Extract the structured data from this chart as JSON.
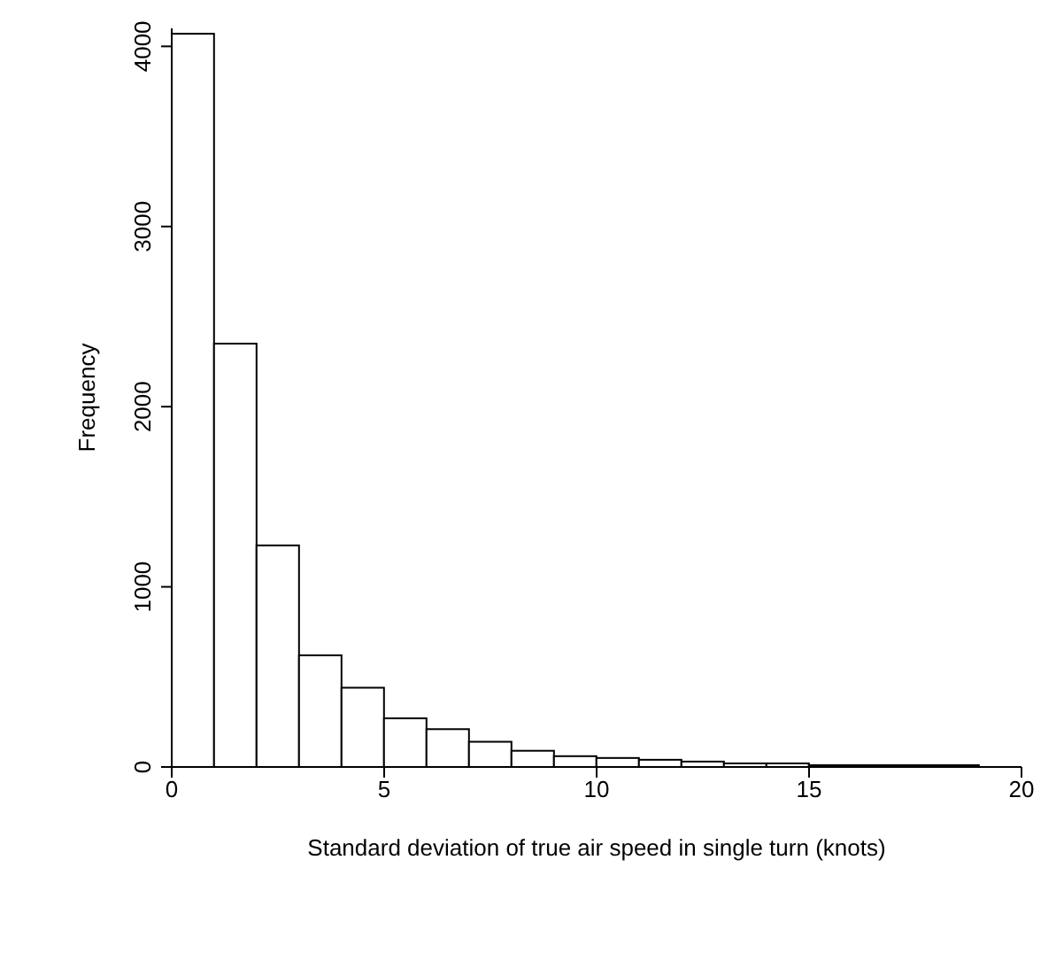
{
  "chart_data": {
    "type": "histogram",
    "xlabel": "Standard deviation of true air speed in single turn (knots)",
    "ylabel": "Frequency",
    "bins": [
      0,
      1,
      2,
      3,
      4,
      5,
      6,
      7,
      8,
      9,
      10,
      11,
      12,
      13,
      14,
      15,
      16,
      17,
      18,
      19,
      20
    ],
    "values": [
      4070,
      2350,
      1230,
      620,
      440,
      270,
      210,
      140,
      90,
      60,
      50,
      40,
      30,
      20,
      20,
      10,
      10,
      10,
      10,
      0
    ],
    "color": "#ffffff",
    "xlim": [
      0,
      20
    ],
    "xticks": [
      0,
      5,
      10,
      15,
      20
    ],
    "ylim": [
      0,
      4100
    ],
    "yticks": [
      0,
      1000,
      2000,
      3000,
      4000
    ],
    "grid": false,
    "legend": false
  }
}
